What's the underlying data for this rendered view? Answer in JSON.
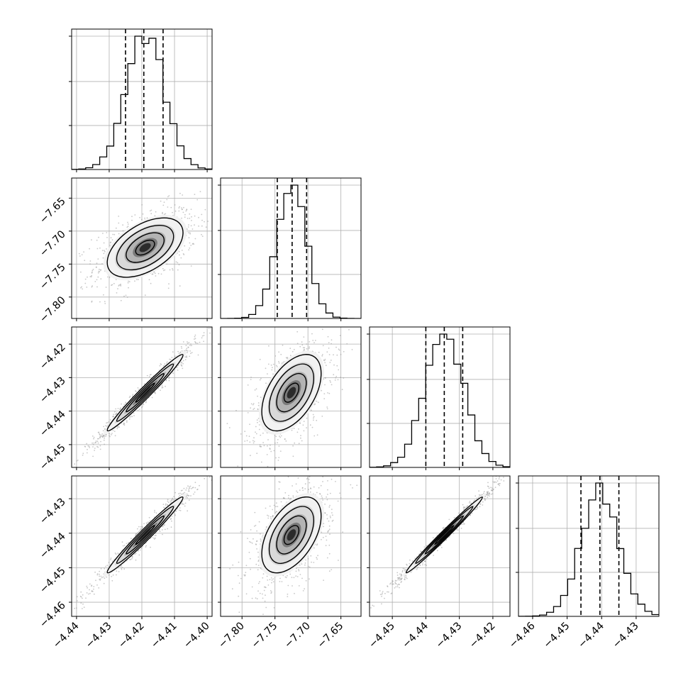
{
  "chart_data": {
    "type": "corner",
    "parameters": [
      "",
      "",
      "",
      ""
    ],
    "ranges": [
      [
        -4.4415,
        -4.3985
      ],
      [
        -7.8325,
        -7.6195
      ],
      [
        -4.4568,
        -4.4149
      ],
      [
        -4.4641,
        -4.4234
      ]
    ],
    "x_ticks": [
      {
        "values": [
          -4.44,
          -4.43,
          -4.42,
          -4.41,
          -4.4
        ],
        "labels": [
          "−4.44",
          "−4.43",
          "−4.42",
          "−4.41",
          "−4.40"
        ]
      },
      {
        "values": [
          -7.8,
          -7.75,
          -7.7,
          -7.65
        ],
        "labels": [
          "−7.80",
          "−7.75",
          "−7.70",
          "−7.65"
        ]
      },
      {
        "values": [
          -4.45,
          -4.44,
          -4.43,
          -4.42
        ],
        "labels": [
          "−4.45",
          "−4.44",
          "−4.43",
          "−4.42"
        ]
      },
      {
        "values": [
          -4.46,
          -4.45,
          -4.44,
          -4.43
        ],
        "labels": [
          "−4.46",
          "−4.45",
          "−4.44",
          "−4.43"
        ]
      }
    ],
    "y_ticks": [
      null,
      {
        "values": [
          -7.65,
          -7.7,
          -7.75,
          -7.8
        ],
        "labels": [
          "−7.65",
          "−7.70",
          "−7.75",
          "−7.80"
        ]
      },
      {
        "values": [
          -4.42,
          -4.43,
          -4.44,
          -4.45
        ],
        "labels": [
          "−4.42",
          "−4.43",
          "−4.44",
          "−4.45"
        ]
      },
      {
        "values": [
          -4.43,
          -4.44,
          -4.45,
          -4.46
        ],
        "labels": [
          "−4.43",
          "−4.44",
          "−4.45",
          "−4.46"
        ]
      }
    ],
    "means": [
      -4.419,
      -7.725,
      -4.4345,
      -4.4405
    ],
    "sigmas": [
      0.0058,
      0.0225,
      0.0057,
      0.0055
    ],
    "quantiles": [
      [
        -4.425,
        -4.4194,
        -4.4135
      ],
      [
        -7.7465,
        -7.724,
        -7.702
      ],
      [
        -4.44,
        -4.4345,
        -4.429
      ],
      [
        -4.446,
        -4.4405,
        -4.435
      ]
    ],
    "correlations": [
      [
        1.0,
        0.5,
        0.98,
        0.98
      ],
      [
        0.5,
        1.0,
        0.5,
        0.5
      ],
      [
        0.98,
        0.5,
        1.0,
        0.99
      ],
      [
        0.98,
        0.5,
        0.99,
        1.0
      ]
    ],
    "n_hist_bins": 20,
    "grid": true,
    "quantile_lines": "dashed",
    "contour_levels_sigma": [
      0.5,
      1.0,
      1.5,
      2.0
    ],
    "colors": {
      "ink": "#000000",
      "grid": "#b0b0b0",
      "points": "#9a9a9a"
    }
  }
}
